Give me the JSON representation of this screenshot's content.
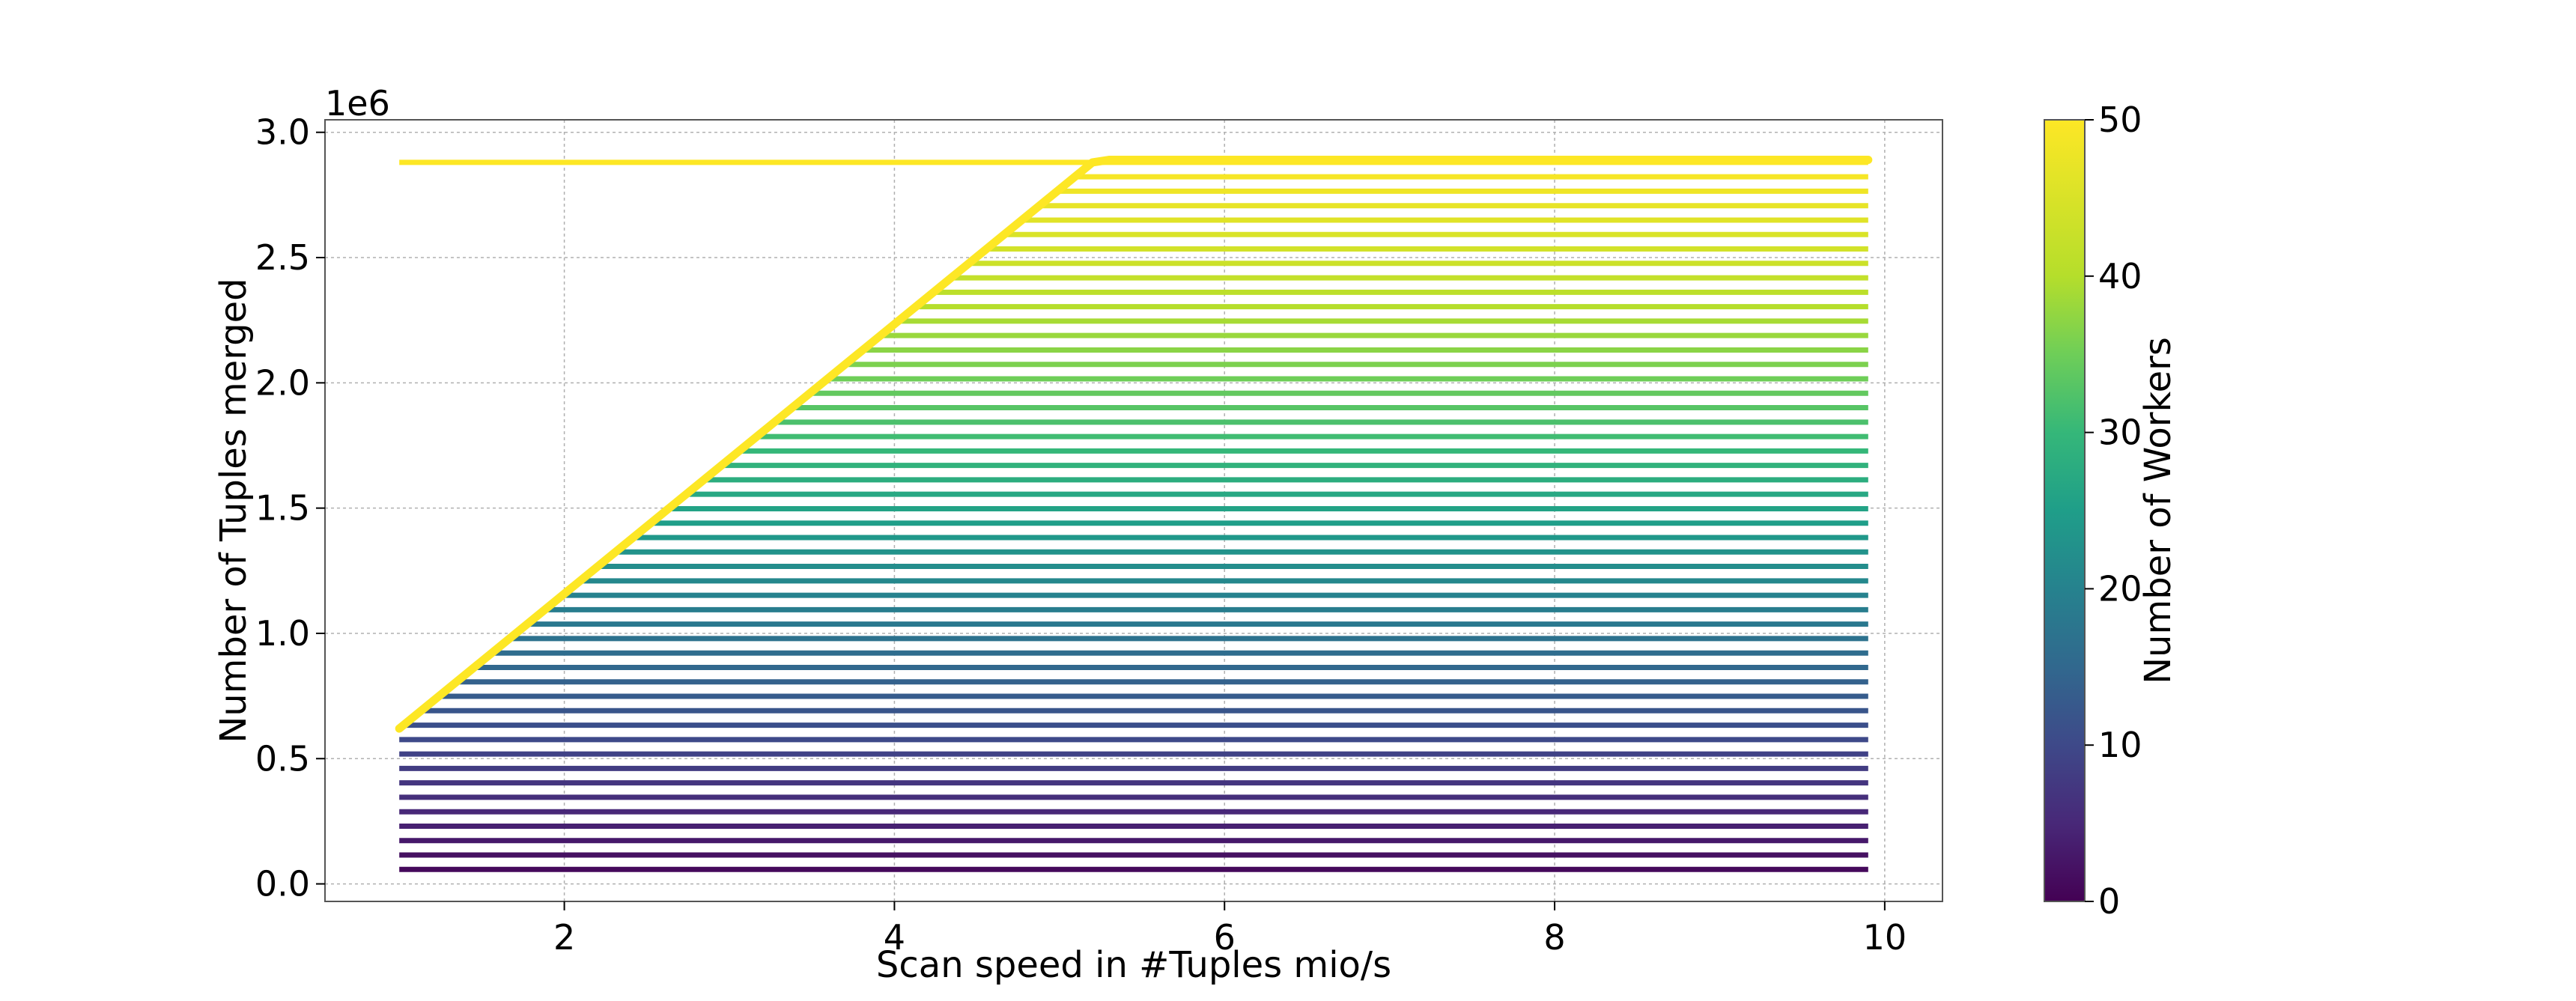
{
  "chart_data": {
    "type": "line",
    "title": "",
    "xlabel": "Scan speed in #Tuples mio/s",
    "ylabel": "Number of Tuples merged",
    "y_multiplier_label": "1e6",
    "xlim": [
      0.55,
      10.35
    ],
    "ylim": [
      -0.07,
      3.05
    ],
    "x_ticks": [
      2,
      4,
      6,
      8,
      10
    ],
    "x_tick_labels": [
      "2",
      "4",
      "6",
      "8",
      "10"
    ],
    "y_ticks": [
      0.0,
      0.5,
      1.0,
      1.5,
      2.0,
      2.5,
      3.0
    ],
    "y_tick_labels": [
      "0.0",
      "0.5",
      "1.0",
      "1.5",
      "2.0",
      "2.5",
      "3.0"
    ],
    "grid": true,
    "x_start": 1.0,
    "x_end": 9.9,
    "workers_min": 1,
    "workers_max": 50,
    "tuples_per_worker_per_mio": 0.0576,
    "tuples_per_worker_max": 0.0576,
    "highlight_series": {
      "name": "",
      "x": [
        1.0,
        5.2,
        5.3,
        9.9
      ],
      "y": [
        0.62,
        2.88,
        2.89,
        2.89
      ],
      "color": "#fde725"
    },
    "colormap": "viridis",
    "colorbar": {
      "label": "Number of Workers",
      "min": 0,
      "max": 50,
      "ticks": [
        0,
        10,
        20,
        30,
        40,
        50
      ],
      "tick_labels": [
        "0",
        "10",
        "20",
        "30",
        "40",
        "50"
      ]
    }
  }
}
